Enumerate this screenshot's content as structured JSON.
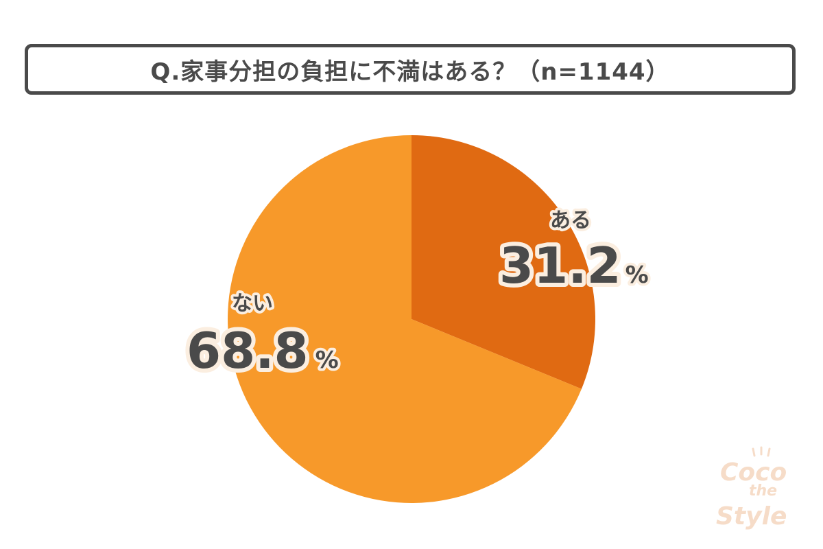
{
  "title": "Q.家事分担の負担に不満はある？（n=1144）",
  "chart_data": {
    "type": "pie",
    "title": "Q.家事分担の負担に不満はある？（n=1144）",
    "slices": [
      {
        "label": "ある",
        "value": 31.2,
        "color": "#e06a12"
      },
      {
        "label": "ない",
        "value": 68.8,
        "color": "#f7992a"
      }
    ],
    "unit": "%",
    "start": "12 o'clock",
    "direction": "clockwise"
  },
  "watermark": {
    "lines": [
      "Coco",
      "the",
      "Style"
    ],
    "color": "#f6dcc8"
  }
}
